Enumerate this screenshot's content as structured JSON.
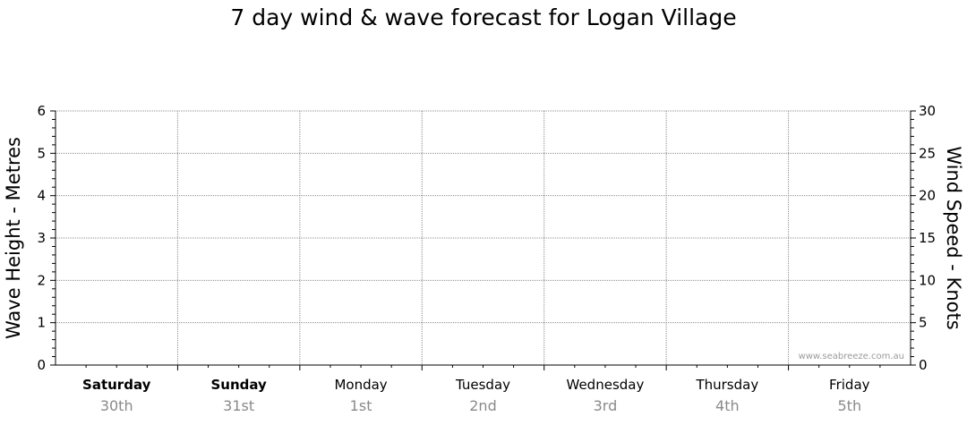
{
  "title": "7 day wind & wave forecast for Logan Village",
  "watermark": "www.seabreeze.com.au",
  "chart_data": {
    "type": "line",
    "title": "7 day wind & wave forecast for Logan Village",
    "left_axis": {
      "label": "Wave Height - Metres",
      "ylim": [
        0,
        6
      ],
      "ticks": [
        "0",
        "1",
        "2",
        "3",
        "4",
        "5",
        "6"
      ]
    },
    "right_axis": {
      "label": "Wind Speed - Knots",
      "ylim": [
        0,
        30
      ],
      "ticks": [
        "0",
        "5",
        "10",
        "15",
        "20",
        "25",
        "30"
      ]
    },
    "days": [
      {
        "name": "Saturday",
        "date": "30th",
        "bold": true
      },
      {
        "name": "Sunday",
        "date": "31st",
        "bold": true
      },
      {
        "name": "Monday",
        "date": "1st",
        "bold": false
      },
      {
        "name": "Tuesday",
        "date": "2nd",
        "bold": false
      },
      {
        "name": "Wednesday",
        "date": "3rd",
        "bold": false
      },
      {
        "name": "Thursday",
        "date": "4th",
        "bold": false
      },
      {
        "name": "Friday",
        "date": "5th",
        "bold": false
      }
    ],
    "series": [],
    "grid": true
  }
}
